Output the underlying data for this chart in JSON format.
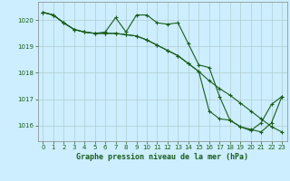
{
  "title": "Graphe pression niveau de la mer (hPa)",
  "background_color": "#cceeff",
  "grid_color": "#b0cccc",
  "line_color": "#1a5c1a",
  "xlim": [
    -0.5,
    23.5
  ],
  "ylim": [
    1015.4,
    1020.7
  ],
  "yticks": [
    1016,
    1017,
    1018,
    1019,
    1020
  ],
  "xticks": [
    0,
    1,
    2,
    3,
    4,
    5,
    6,
    7,
    8,
    9,
    10,
    11,
    12,
    13,
    14,
    15,
    16,
    17,
    18,
    19,
    20,
    21,
    22,
    23
  ],
  "series1": [
    1020.3,
    1020.2,
    1019.9,
    1019.65,
    1019.55,
    1019.5,
    1019.55,
    1020.1,
    1019.55,
    1020.2,
    1020.2,
    1019.9,
    1019.85,
    1019.9,
    1019.1,
    1018.3,
    1018.2,
    1017.1,
    1016.2,
    1015.95,
    1015.85,
    1015.75,
    1016.1,
    1017.1
  ],
  "series2": [
    1020.3,
    1020.2,
    1019.9,
    1019.65,
    1019.55,
    1019.5,
    1019.5,
    1019.5,
    1019.45,
    1019.4,
    1019.25,
    1019.05,
    1018.85,
    1018.65,
    1018.35,
    1018.05,
    1017.7,
    1017.4,
    1017.15,
    1016.85,
    1016.55,
    1016.25,
    1015.95,
    1015.75
  ],
  "series3": [
    1020.3,
    1020.2,
    1019.9,
    1019.65,
    1019.55,
    1019.5,
    1019.5,
    1019.5,
    1019.45,
    1019.4,
    1019.25,
    1019.05,
    1018.85,
    1018.65,
    1018.35,
    1018.05,
    1016.55,
    1016.25,
    1016.2,
    1015.95,
    1015.8,
    1016.1,
    1016.8,
    1017.1
  ]
}
